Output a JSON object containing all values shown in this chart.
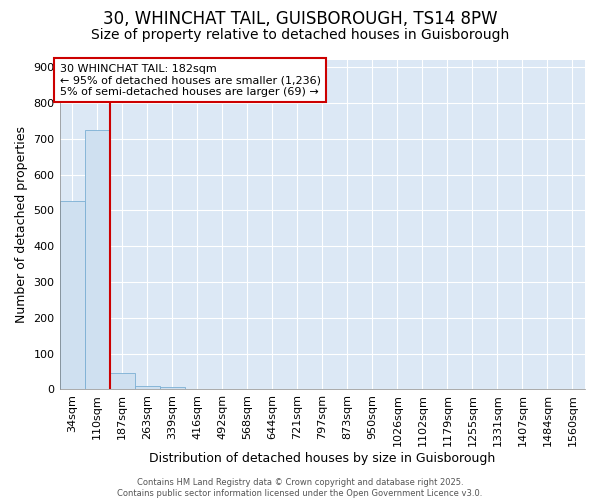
{
  "title": "30, WHINCHAT TAIL, GUISBOROUGH, TS14 8PW",
  "subtitle": "Size of property relative to detached houses in Guisborough",
  "xlabel": "Distribution of detached houses by size in Guisborough",
  "ylabel": "Number of detached properties",
  "categories": [
    "34sqm",
    "110sqm",
    "187sqm",
    "263sqm",
    "339sqm",
    "416sqm",
    "492sqm",
    "568sqm",
    "644sqm",
    "721sqm",
    "797sqm",
    "873sqm",
    "950sqm",
    "1026sqm",
    "1102sqm",
    "1179sqm",
    "1255sqm",
    "1331sqm",
    "1407sqm",
    "1484sqm",
    "1560sqm"
  ],
  "values": [
    525,
    725,
    47,
    10,
    7,
    0,
    0,
    0,
    0,
    0,
    0,
    0,
    0,
    0,
    0,
    0,
    0,
    0,
    0,
    0,
    0
  ],
  "bar_color": "#cfe0f0",
  "bar_edge_color": "#7bafd4",
  "red_line_index": 2,
  "ylim": [
    0,
    920
  ],
  "yticks": [
    0,
    100,
    200,
    300,
    400,
    500,
    600,
    700,
    800,
    900
  ],
  "annotation_text": "30 WHINCHAT TAIL: 182sqm\n← 95% of detached houses are smaller (1,236)\n5% of semi-detached houses are larger (69) →",
  "annotation_box_facecolor": "#ffffff",
  "annotation_box_edgecolor": "#cc0000",
  "plot_bg_color": "#dce8f5",
  "figure_bg_color": "#ffffff",
  "grid_color": "#ffffff",
  "footer_text": "Contains HM Land Registry data © Crown copyright and database right 2025.\nContains public sector information licensed under the Open Government Licence v3.0.",
  "title_fontsize": 12,
  "subtitle_fontsize": 10,
  "axis_label_fontsize": 9,
  "tick_fontsize": 8,
  "footer_fontsize": 6,
  "annotation_fontsize": 8
}
